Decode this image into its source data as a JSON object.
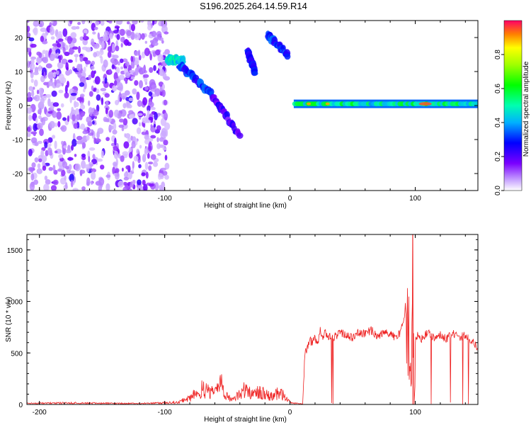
{
  "title": "S196.2025.264.14.59.R14",
  "chart_data": [
    {
      "type": "heatmap",
      "title": "S196.2025.264.14.59.R14",
      "xlabel": "Height of straight line (km)",
      "ylabel": "Frequency (Hz)",
      "xlim": [
        -210,
        150
      ],
      "ylim": [
        -25,
        25
      ],
      "xticks": [
        -200,
        -100,
        0,
        100
      ],
      "yticks": [
        -20,
        -10,
        0,
        10,
        20
      ],
      "colorbar": {
        "label": "Normalized spectral amplitude",
        "range": [
          0,
          1
        ],
        "ticks": [
          "0.0",
          "0.2",
          "0.4",
          "0.6",
          "0.8"
        ]
      },
      "features": [
        {
          "name": "noise",
          "x": [
            -210,
            -98
          ],
          "freq": [
            -25,
            25
          ],
          "amplitude": 0.15
        },
        {
          "name": "track-1",
          "x": [
            -98,
            -85
          ],
          "freq": [
            13.5,
            13
          ],
          "amplitude": 0.45
        },
        {
          "name": "track-2",
          "x": [
            -88,
            -62
          ],
          "freq": [
            12,
            3
          ],
          "amplitude": 0.3
        },
        {
          "name": "track-3",
          "x": [
            -62,
            -40
          ],
          "freq": [
            3,
            -9
          ],
          "amplitude": 0.2
        },
        {
          "name": "track-4",
          "x": [
            -34,
            -28
          ],
          "freq": [
            16,
            10
          ],
          "amplitude": 0.25
        },
        {
          "name": "track-5",
          "x": [
            -18,
            -2
          ],
          "freq": [
            21,
            15
          ],
          "amplitude": 0.3
        },
        {
          "name": "carrier",
          "x": [
            3,
            150
          ],
          "freq": [
            0.5,
            0.5
          ],
          "amplitude": 0.5,
          "peak_x": 108,
          "peak_amplitude": 0.95
        }
      ]
    },
    {
      "type": "line",
      "xlabel": "Height of straight line (km)",
      "ylabel": "SNR (10 * v/v)",
      "xlim": [
        -210,
        150
      ],
      "ylim": [
        0,
        1650
      ],
      "xticks": [
        -200,
        -100,
        0,
        100
      ],
      "yticks": [
        0,
        500,
        1000,
        1500
      ],
      "series": [
        {
          "name": "SNR",
          "color": "#ee2020",
          "x": [
            -210,
            -180,
            -150,
            -120,
            -100,
            -90,
            -80,
            -75,
            -70,
            -65,
            -60,
            -55,
            -50,
            -45,
            -40,
            -35,
            -30,
            -25,
            -20,
            -15,
            -10,
            -5,
            0,
            5,
            10,
            12,
            14,
            16,
            18,
            20,
            22,
            24,
            26,
            28,
            30,
            35,
            40,
            45,
            50,
            55,
            60,
            65,
            70,
            75,
            80,
            85,
            88,
            90,
            92,
            94,
            95,
            96,
            97,
            98,
            99,
            100,
            102,
            105,
            110,
            115,
            120,
            125,
            130,
            135,
            140,
            145,
            150
          ],
          "values": [
            10,
            15,
            12,
            10,
            15,
            20,
            60,
            110,
            150,
            130,
            100,
            210,
            80,
            40,
            110,
            150,
            90,
            120,
            100,
            80,
            110,
            90,
            20,
            10,
            5,
            500,
            550,
            620,
            600,
            650,
            590,
            720,
            640,
            700,
            660,
            650,
            700,
            680,
            640,
            700,
            690,
            720,
            660,
            700,
            680,
            650,
            700,
            800,
            900,
            1000,
            1060,
            700,
            200,
            1640,
            300,
            600,
            690,
            640,
            700,
            650,
            680,
            630,
            700,
            640,
            680,
            620,
            540
          ]
        }
      ]
    }
  ]
}
